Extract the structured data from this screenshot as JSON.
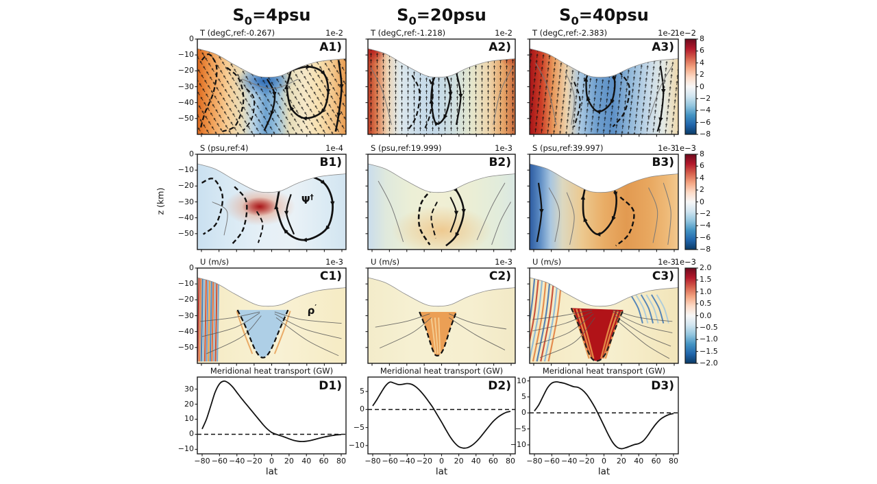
{
  "columns": [
    {
      "pre": "S",
      "sub": "0",
      "post": "=4psu"
    },
    {
      "pre": "S",
      "sub": "0",
      "post": "=20psu"
    },
    {
      "pre": "S",
      "sub": "0",
      "post": "=40psu"
    }
  ],
  "axes": {
    "ylabel": "z (km)",
    "xlabel": "lat",
    "z_ticks": [
      "0",
      "−10",
      "−20",
      "−30",
      "−40",
      "−50"
    ],
    "lat_ticks": [
      "−80",
      "−60",
      "−40",
      "−20",
      "0",
      "20",
      "40",
      "60",
      "80"
    ],
    "lat_tick_values": [
      -80,
      -60,
      -40,
      -20,
      0,
      20,
      40,
      60,
      80
    ]
  },
  "colorbars": [
    {
      "id": "T",
      "offset": "1e−2",
      "max": 8,
      "min": -8,
      "tick_values": [
        8,
        6,
        4,
        2,
        0,
        -2,
        -4,
        -6,
        -8
      ],
      "ticks": [
        "8",
        "6",
        "4",
        "2",
        "0",
        "−2",
        "−4",
        "−6",
        "−8"
      ],
      "colors": [
        "#6e0a1e",
        "#b2182b",
        "#d6604d",
        "#f4a582",
        "#fddbc7",
        "#f7f7f7",
        "#d1e5f0",
        "#92c5de",
        "#4393c3",
        "#2166ac",
        "#0a3a66"
      ]
    },
    {
      "id": "S",
      "offset": "1e−3",
      "max": 8,
      "min": -8,
      "tick_values": [
        8,
        6,
        4,
        2,
        0,
        -2,
        -4,
        -6,
        -8
      ],
      "ticks": [
        "8",
        "6",
        "4",
        "2",
        "0",
        "−2",
        "−4",
        "−6",
        "−8"
      ],
      "colors": [
        "#6e0a1e",
        "#b2182b",
        "#d6604d",
        "#f4a582",
        "#fddbc7",
        "#f7f7f7",
        "#d1e5f0",
        "#92c5de",
        "#4393c3",
        "#2166ac",
        "#0a3a66"
      ]
    },
    {
      "id": "U",
      "offset": "1e−3",
      "max": 2,
      "min": -2,
      "tick_values": [
        2,
        1.5,
        1,
        0.5,
        0,
        -0.5,
        -1,
        -1.5,
        -2
      ],
      "ticks": [
        "2.0",
        "1.5",
        "1.0",
        "0.5",
        "0.0",
        "−0.5",
        "−1.0",
        "−1.5",
        "−2.0"
      ],
      "colors": [
        "#6e0a1e",
        "#b2182b",
        "#d6604d",
        "#f4a582",
        "#fddbc7",
        "#f7f7f7",
        "#d1e5f0",
        "#92c5de",
        "#4393c3",
        "#2166ac",
        "#0a3a66"
      ]
    }
  ],
  "chart_data": [
    {
      "id": "A1",
      "type": "heatmap",
      "label": "A1)",
      "title": "T (degC,ref:-0.267)",
      "scale": "1e-2",
      "column": "S0=4psu",
      "variable": "T",
      "units": "degC",
      "x_range": [
        -80,
        80
      ],
      "z_range_km": [
        -57,
        0
      ],
      "colorbar": "T",
      "colorbar_range": [
        -8,
        8
      ],
      "colorbar_scale": "1e-2",
      "palette": [
        [
          0,
          "#de6a1e"
        ],
        [
          0.09,
          "#f09c52"
        ],
        [
          0.2,
          "#f7cd95"
        ],
        [
          0.3,
          "#e9ddba"
        ],
        [
          0.38,
          "#b7d3e6"
        ],
        [
          0.46,
          "#6fa3d0"
        ],
        [
          0.54,
          "#9dc4de"
        ],
        [
          0.62,
          "#e6ddba"
        ],
        [
          0.72,
          "#f6e8c8"
        ],
        [
          0.82,
          "#f7e0b0"
        ],
        [
          0.92,
          "#f3c488"
        ],
        [
          1,
          "#e89a4e"
        ]
      ]
    },
    {
      "id": "A2",
      "type": "heatmap",
      "label": "A2)",
      "title": "T (degC,ref:-1.218)",
      "scale": "1e-2",
      "column": "S0=20psu",
      "variable": "T",
      "units": "degC",
      "x_range": [
        -80,
        80
      ],
      "z_range_km": [
        -57,
        0
      ],
      "colorbar": "T",
      "colorbar_range": [
        -8,
        8
      ],
      "colorbar_scale": "1e-2",
      "palette": [
        [
          0,
          "#bb3a24"
        ],
        [
          0.06,
          "#dd7e52"
        ],
        [
          0.13,
          "#ecd3b4"
        ],
        [
          0.22,
          "#dde8ec"
        ],
        [
          0.34,
          "#c9dcea"
        ],
        [
          0.46,
          "#c4d9e8"
        ],
        [
          0.58,
          "#cfdfe0"
        ],
        [
          0.7,
          "#e4e6cd"
        ],
        [
          0.82,
          "#eed6ad"
        ],
        [
          0.92,
          "#e5a468"
        ],
        [
          1,
          "#c96a3c"
        ]
      ]
    },
    {
      "id": "A3",
      "type": "heatmap",
      "label": "A3)",
      "title": "T (degC,ref:-2.383)",
      "scale": "1e-2",
      "column": "S0=40psu",
      "variable": "T",
      "units": "degC",
      "x_range": [
        -80,
        80
      ],
      "z_range_km": [
        -57,
        0
      ],
      "colorbar": "T",
      "colorbar_range": [
        -8,
        8
      ],
      "colorbar_scale": "1e-2",
      "palette": [
        [
          0,
          "#a61318"
        ],
        [
          0.08,
          "#cd3f27"
        ],
        [
          0.16,
          "#e89a5c"
        ],
        [
          0.25,
          "#ecd3ae"
        ],
        [
          0.34,
          "#a9c8e2"
        ],
        [
          0.45,
          "#6f9fce"
        ],
        [
          0.56,
          "#5d90c6"
        ],
        [
          0.68,
          "#93b9da"
        ],
        [
          0.8,
          "#c6d9e8"
        ],
        [
          0.9,
          "#e4e9e3"
        ],
        [
          1,
          "#eed9ae"
        ]
      ]
    },
    {
      "id": "B1",
      "type": "heatmap",
      "label": "B1)",
      "title": "S (psu,ref:4)",
      "scale": "1e-4",
      "column": "S0=4psu",
      "variable": "S",
      "units": "psu",
      "x_range": [
        -80,
        80
      ],
      "z_range_km": [
        -57,
        0
      ],
      "colorbar": "S",
      "colorbar_range": [
        -8,
        8
      ],
      "colorbar_scale": "1e-3",
      "annotation": {
        "base": "Ψ",
        "sup": "†",
        "x": 0.7,
        "y": 0.42
      },
      "palette": [
        [
          0,
          "#cae0f0"
        ],
        [
          0.2,
          "#d8e9f4"
        ],
        [
          0.45,
          "#e6f0f7"
        ],
        [
          0.65,
          "#e9f1f6"
        ],
        [
          0.85,
          "#dcebf4"
        ],
        [
          1,
          "#d2e4f0"
        ]
      ]
    },
    {
      "id": "B2",
      "type": "heatmap",
      "label": "B2)",
      "title": "S (psu,ref:19.999)",
      "scale": "1e-3",
      "column": "S0=20psu",
      "variable": "S",
      "units": "psu",
      "x_range": [
        -80,
        80
      ],
      "z_range_km": [
        -57,
        0
      ],
      "colorbar": "S",
      "colorbar_range": [
        -8,
        8
      ],
      "colorbar_scale": "1e-3",
      "palette": [
        [
          0,
          "#c9dcec"
        ],
        [
          0.12,
          "#dfe9dd"
        ],
        [
          0.3,
          "#ecefd6"
        ],
        [
          0.5,
          "#f0efd4"
        ],
        [
          0.7,
          "#ebeed5"
        ],
        [
          0.88,
          "#e2ecdb"
        ],
        [
          1,
          "#d9e7e2"
        ]
      ]
    },
    {
      "id": "B3",
      "type": "heatmap",
      "label": "B3)",
      "title": "S (psu,ref:39.997)",
      "scale": "1e-3",
      "column": "S0=40psu",
      "variable": "S",
      "units": "psu",
      "x_range": [
        -80,
        80
      ],
      "z_range_km": [
        -57,
        0
      ],
      "colorbar": "S",
      "colorbar_range": [
        -8,
        8
      ],
      "colorbar_scale": "1e-3",
      "palette": [
        [
          0,
          "#2c5aa0"
        ],
        [
          0.07,
          "#5c8cc4"
        ],
        [
          0.14,
          "#a9c6e0"
        ],
        [
          0.22,
          "#dcd8c0"
        ],
        [
          0.35,
          "#ecc990"
        ],
        [
          0.5,
          "#e9ad66"
        ],
        [
          0.65,
          "#e29a51"
        ],
        [
          0.8,
          "#e8a75f"
        ],
        [
          0.92,
          "#eeb977"
        ],
        [
          1,
          "#f2c98f"
        ]
      ]
    },
    {
      "id": "C1",
      "type": "heatmap",
      "label": "C1)",
      "title": "U (m/s)",
      "scale": "1e-3",
      "column": "S0=4psu",
      "variable": "U",
      "units": "m/s",
      "x_range": [
        -80,
        80
      ],
      "z_range_km": [
        -57,
        0
      ],
      "colorbar": "U",
      "colorbar_range": [
        -2,
        2
      ],
      "colorbar_scale": "1e-3",
      "annotation": {
        "base": "ρ",
        "sup": "′",
        "x": 0.74,
        "y": 0.38
      },
      "palette": [
        [
          0,
          "#f5e9c2"
        ],
        [
          0.3,
          "#f7efcd"
        ],
        [
          0.55,
          "#f8f1d4"
        ],
        [
          0.8,
          "#f7eecb"
        ],
        [
          1,
          "#f6ebc4"
        ]
      ]
    },
    {
      "id": "C2",
      "type": "heatmap",
      "label": "C2)",
      "title": "U (m/s)",
      "scale": "1e-3",
      "column": "S0=20psu",
      "variable": "U",
      "units": "m/s",
      "x_range": [
        -80,
        80
      ],
      "z_range_km": [
        -57,
        0
      ],
      "colorbar": "U",
      "colorbar_range": [
        -2,
        2
      ],
      "colorbar_scale": "1e-3",
      "palette": [
        [
          0,
          "#f3ecca"
        ],
        [
          0.3,
          "#f6f0d2"
        ],
        [
          0.7,
          "#f6efd0"
        ],
        [
          1,
          "#f2e9c6"
        ]
      ]
    },
    {
      "id": "C3",
      "type": "heatmap",
      "label": "C3)",
      "title": "U (m/s)",
      "scale": "1e-3",
      "column": "S0=40psu",
      "variable": "U",
      "units": "m/s",
      "x_range": [
        -80,
        80
      ],
      "z_range_km": [
        -57,
        0
      ],
      "colorbar": "U",
      "colorbar_range": [
        -2,
        2
      ],
      "colorbar_scale": "1e-3",
      "palette": [
        [
          0,
          "#f4e8c0"
        ],
        [
          0.25,
          "#f6edca"
        ],
        [
          0.5,
          "#f7f0d0"
        ],
        [
          0.75,
          "#f5ebc6"
        ],
        [
          1,
          "#f2e5ba"
        ]
      ]
    },
    {
      "id": "D1",
      "type": "line",
      "label": "D1)",
      "title": "Meridional heat transport (GW)",
      "xlabel": "lat",
      "ylabel_units": "GW",
      "zero_line": true,
      "ylim": [
        -13,
        38
      ],
      "ytick_values": [
        30,
        20,
        10,
        0,
        -10
      ],
      "yticks": [
        "30",
        "20",
        "10",
        "0",
        "−10"
      ],
      "x": [
        -80,
        -75,
        -70,
        -65,
        -60,
        -55,
        -50,
        -45,
        -40,
        -35,
        -30,
        -25,
        -20,
        -15,
        -10,
        -5,
        0,
        5,
        10,
        15,
        20,
        25,
        30,
        35,
        40,
        45,
        50,
        55,
        60,
        65,
        70,
        75,
        80
      ],
      "y": [
        3.5,
        10,
        19,
        28,
        33.5,
        35.3,
        34.2,
        31.5,
        27.8,
        24,
        20.5,
        17,
        13.5,
        10,
        6.5,
        3.5,
        1.2,
        0,
        -0.9,
        -1.9,
        -3,
        -4,
        -4.6,
        -4.8,
        -4.6,
        -4.1,
        -3.4,
        -2.6,
        -1.9,
        -1.3,
        -0.8,
        -0.4,
        -0.2
      ]
    },
    {
      "id": "D2",
      "type": "line",
      "label": "D2)",
      "title": "Meridional heat transport (GW)",
      "xlabel": "lat",
      "ylabel_units": "GW",
      "zero_line": true,
      "ylim": [
        -12.3,
        9
      ],
      "ytick_values": [
        5,
        0,
        -5,
        -10
      ],
      "yticks": [
        "5",
        "0",
        "−5",
        "−10"
      ],
      "x": [
        -80,
        -75,
        -70,
        -65,
        -60,
        -55,
        -50,
        -45,
        -40,
        -35,
        -30,
        -25,
        -20,
        -15,
        -10,
        -5,
        0,
        5,
        10,
        15,
        20,
        25,
        30,
        35,
        40,
        45,
        50,
        55,
        60,
        65,
        70,
        75,
        80
      ],
      "y": [
        1.0,
        2.8,
        4.8,
        6.6,
        7.6,
        7.3,
        6.9,
        7.0,
        7.2,
        7.0,
        6.3,
        5.2,
        3.8,
        2.2,
        0.5,
        -1.5,
        -3.5,
        -5.6,
        -7.6,
        -9.2,
        -10.3,
        -10.7,
        -10.6,
        -10.0,
        -9.0,
        -7.7,
        -6.2,
        -4.7,
        -3.3,
        -2.2,
        -1.4,
        -0.8,
        -0.5
      ]
    },
    {
      "id": "D3",
      "type": "line",
      "label": "D3)",
      "title": "Meridional heat transport (GW)",
      "xlabel": "lat",
      "ylabel_units": "GW",
      "zero_line": true,
      "ylim": [
        -12.8,
        11.2
      ],
      "ytick_values": [
        10,
        5,
        0,
        -5,
        -10
      ],
      "yticks": [
        "10",
        "5",
        "0",
        "−5",
        "−10"
      ],
      "x": [
        -80,
        -75,
        -70,
        -65,
        -60,
        -55,
        -50,
        -45,
        -40,
        -35,
        -30,
        -25,
        -20,
        -15,
        -10,
        -5,
        0,
        5,
        10,
        15,
        20,
        25,
        30,
        35,
        40,
        45,
        50,
        55,
        60,
        65,
        70,
        75,
        80
      ],
      "y": [
        0.6,
        2.5,
        5.2,
        7.8,
        9.3,
        9.7,
        9.5,
        9.2,
        8.7,
        8.2,
        8.0,
        7.2,
        5.8,
        3.8,
        1.5,
        -1.2,
        -4.0,
        -6.8,
        -9.2,
        -10.7,
        -11.2,
        -10.9,
        -10.4,
        -9.9,
        -9.6,
        -8.8,
        -7.2,
        -5.2,
        -3.4,
        -2.0,
        -1.1,
        -0.5,
        -0.2
      ]
    }
  ]
}
